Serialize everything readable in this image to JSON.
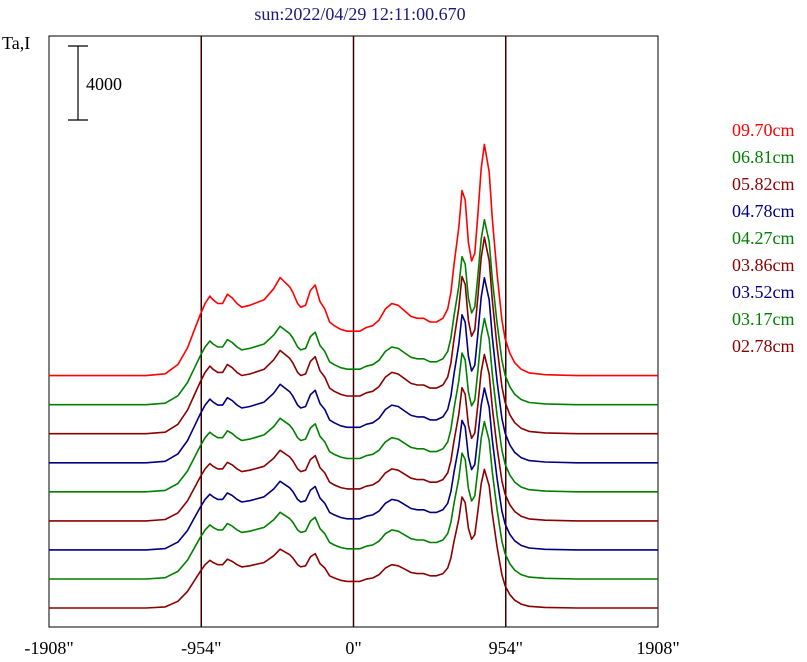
{
  "chart_data": {
    "type": "line",
    "title": "sun:2022/04/29 12:11:00.670",
    "ylabel": "Ta,I",
    "scale_bar_label": "4000",
    "scale_bar_value": 4000,
    "xlim": [
      -1908,
      1908
    ],
    "x_ticks": [
      -1908,
      -954,
      0,
      954,
      1908
    ],
    "x_tick_labels": [
      "-1908\"",
      "-954\"",
      "0\"",
      "954\"",
      "1908\""
    ],
    "vlines": [
      -954,
      0,
      954
    ],
    "grid": false,
    "legend_position": "right",
    "series_offset_step": 1570,
    "profile": {
      "x": [
        -1908,
        -1500,
        -1300,
        -1180,
        -1100,
        -1040,
        -1000,
        -960,
        -930,
        -900,
        -880,
        -850,
        -820,
        -790,
        -760,
        -730,
        -700,
        -650,
        -560,
        -500,
        -460,
        -400,
        -380,
        -350,
        -330,
        -300,
        -270,
        -240,
        -210,
        -180,
        -150,
        -120,
        -80,
        -40,
        0,
        40,
        80,
        120,
        160,
        200,
        240,
        280,
        320,
        360,
        400,
        440,
        480,
        520,
        560,
        590,
        610,
        630,
        660,
        680,
        700,
        720,
        740,
        760,
        780,
        800,
        820,
        850,
        870,
        900,
        930,
        950,
        980,
        1010,
        1050,
        1100,
        1200,
        1400,
        1600,
        1908
      ],
      "y": [
        0,
        0,
        0,
        100,
        600,
        1500,
        2400,
        3300,
        3900,
        4300,
        4100,
        3900,
        3900,
        4400,
        4200,
        3900,
        3700,
        3800,
        4100,
        4700,
        5300,
        4800,
        4500,
        3900,
        3700,
        3800,
        4600,
        4900,
        4000,
        3600,
        2900,
        2700,
        2500,
        2400,
        2400,
        2400,
        2600,
        2700,
        3000,
        3600,
        3900,
        3800,
        3500,
        3200,
        3100,
        3100,
        2900,
        2900,
        3100,
        3600,
        4500,
        6000,
        8000,
        10000,
        9500,
        7200,
        6200,
        6600,
        8800,
        11200,
        12500,
        11000,
        8500,
        5500,
        3000,
        2000,
        1200,
        700,
        350,
        150,
        50,
        0,
        0,
        0
      ]
    },
    "series": [
      {
        "name": "09.70cm",
        "color": "#ff0000",
        "scale": 1.0,
        "offset_index": 8
      },
      {
        "name": "06.81cm",
        "color": "#008000",
        "scale": 0.8,
        "offset_index": 7
      },
      {
        "name": "05.82cm",
        "color": "#8b0000",
        "scale": 0.85,
        "offset_index": 6
      },
      {
        "name": "04.78cm",
        "color": "#000080",
        "scale": 0.8,
        "offset_index": 5
      },
      {
        "name": "04.27cm",
        "color": "#008000",
        "scale": 0.75,
        "offset_index": 4
      },
      {
        "name": "03.86cm",
        "color": "#8b0000",
        "scale": 0.72,
        "offset_index": 3
      },
      {
        "name": "03.52cm",
        "color": "#000080",
        "scale": 0.7,
        "offset_index": 2
      },
      {
        "name": "03.17cm",
        "color": "#008000",
        "scale": 0.68,
        "offset_index": 1
      },
      {
        "name": "02.78cm",
        "color": "#8b0000",
        "scale": 0.6,
        "offset_index": 0
      }
    ]
  }
}
